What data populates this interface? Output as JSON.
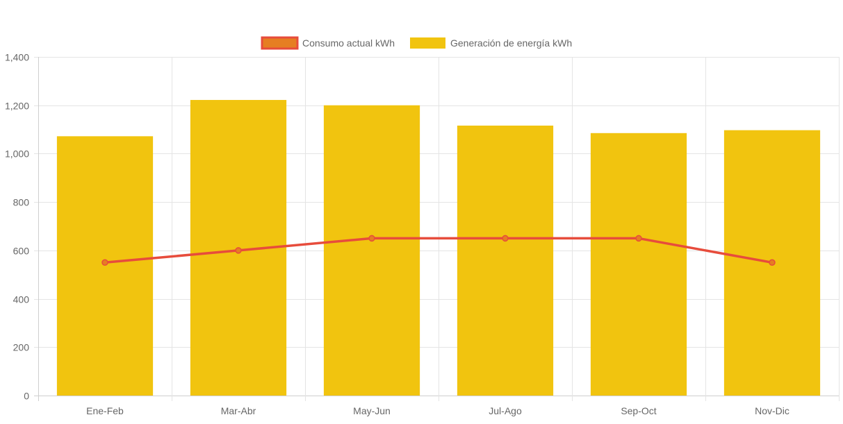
{
  "chart_data": {
    "type": "bar",
    "categories": [
      "Ene-Feb",
      "Mar-Abr",
      "May-Jun",
      "Jul-Ago",
      "Sep-Oct",
      "Nov-Dic"
    ],
    "series": [
      {
        "name": "Consumo actual kWh",
        "type": "line",
        "values": [
          550,
          600,
          650,
          650,
          650,
          550
        ],
        "color": "#e74c3c",
        "fill": "#e67e22"
      },
      {
        "name": "Generación de energía kWh",
        "type": "bar",
        "values": [
          1072,
          1222,
          1200,
          1116,
          1085,
          1097
        ],
        "color": "#f1c40f"
      }
    ],
    "yticks": [
      "0",
      "200",
      "400",
      "600",
      "800",
      "1,000",
      "1,200",
      "1,400"
    ],
    "ylim": [
      0,
      1400
    ],
    "grid": true,
    "legend": "top-center",
    "title": "",
    "xlabel": "",
    "ylabel": ""
  }
}
